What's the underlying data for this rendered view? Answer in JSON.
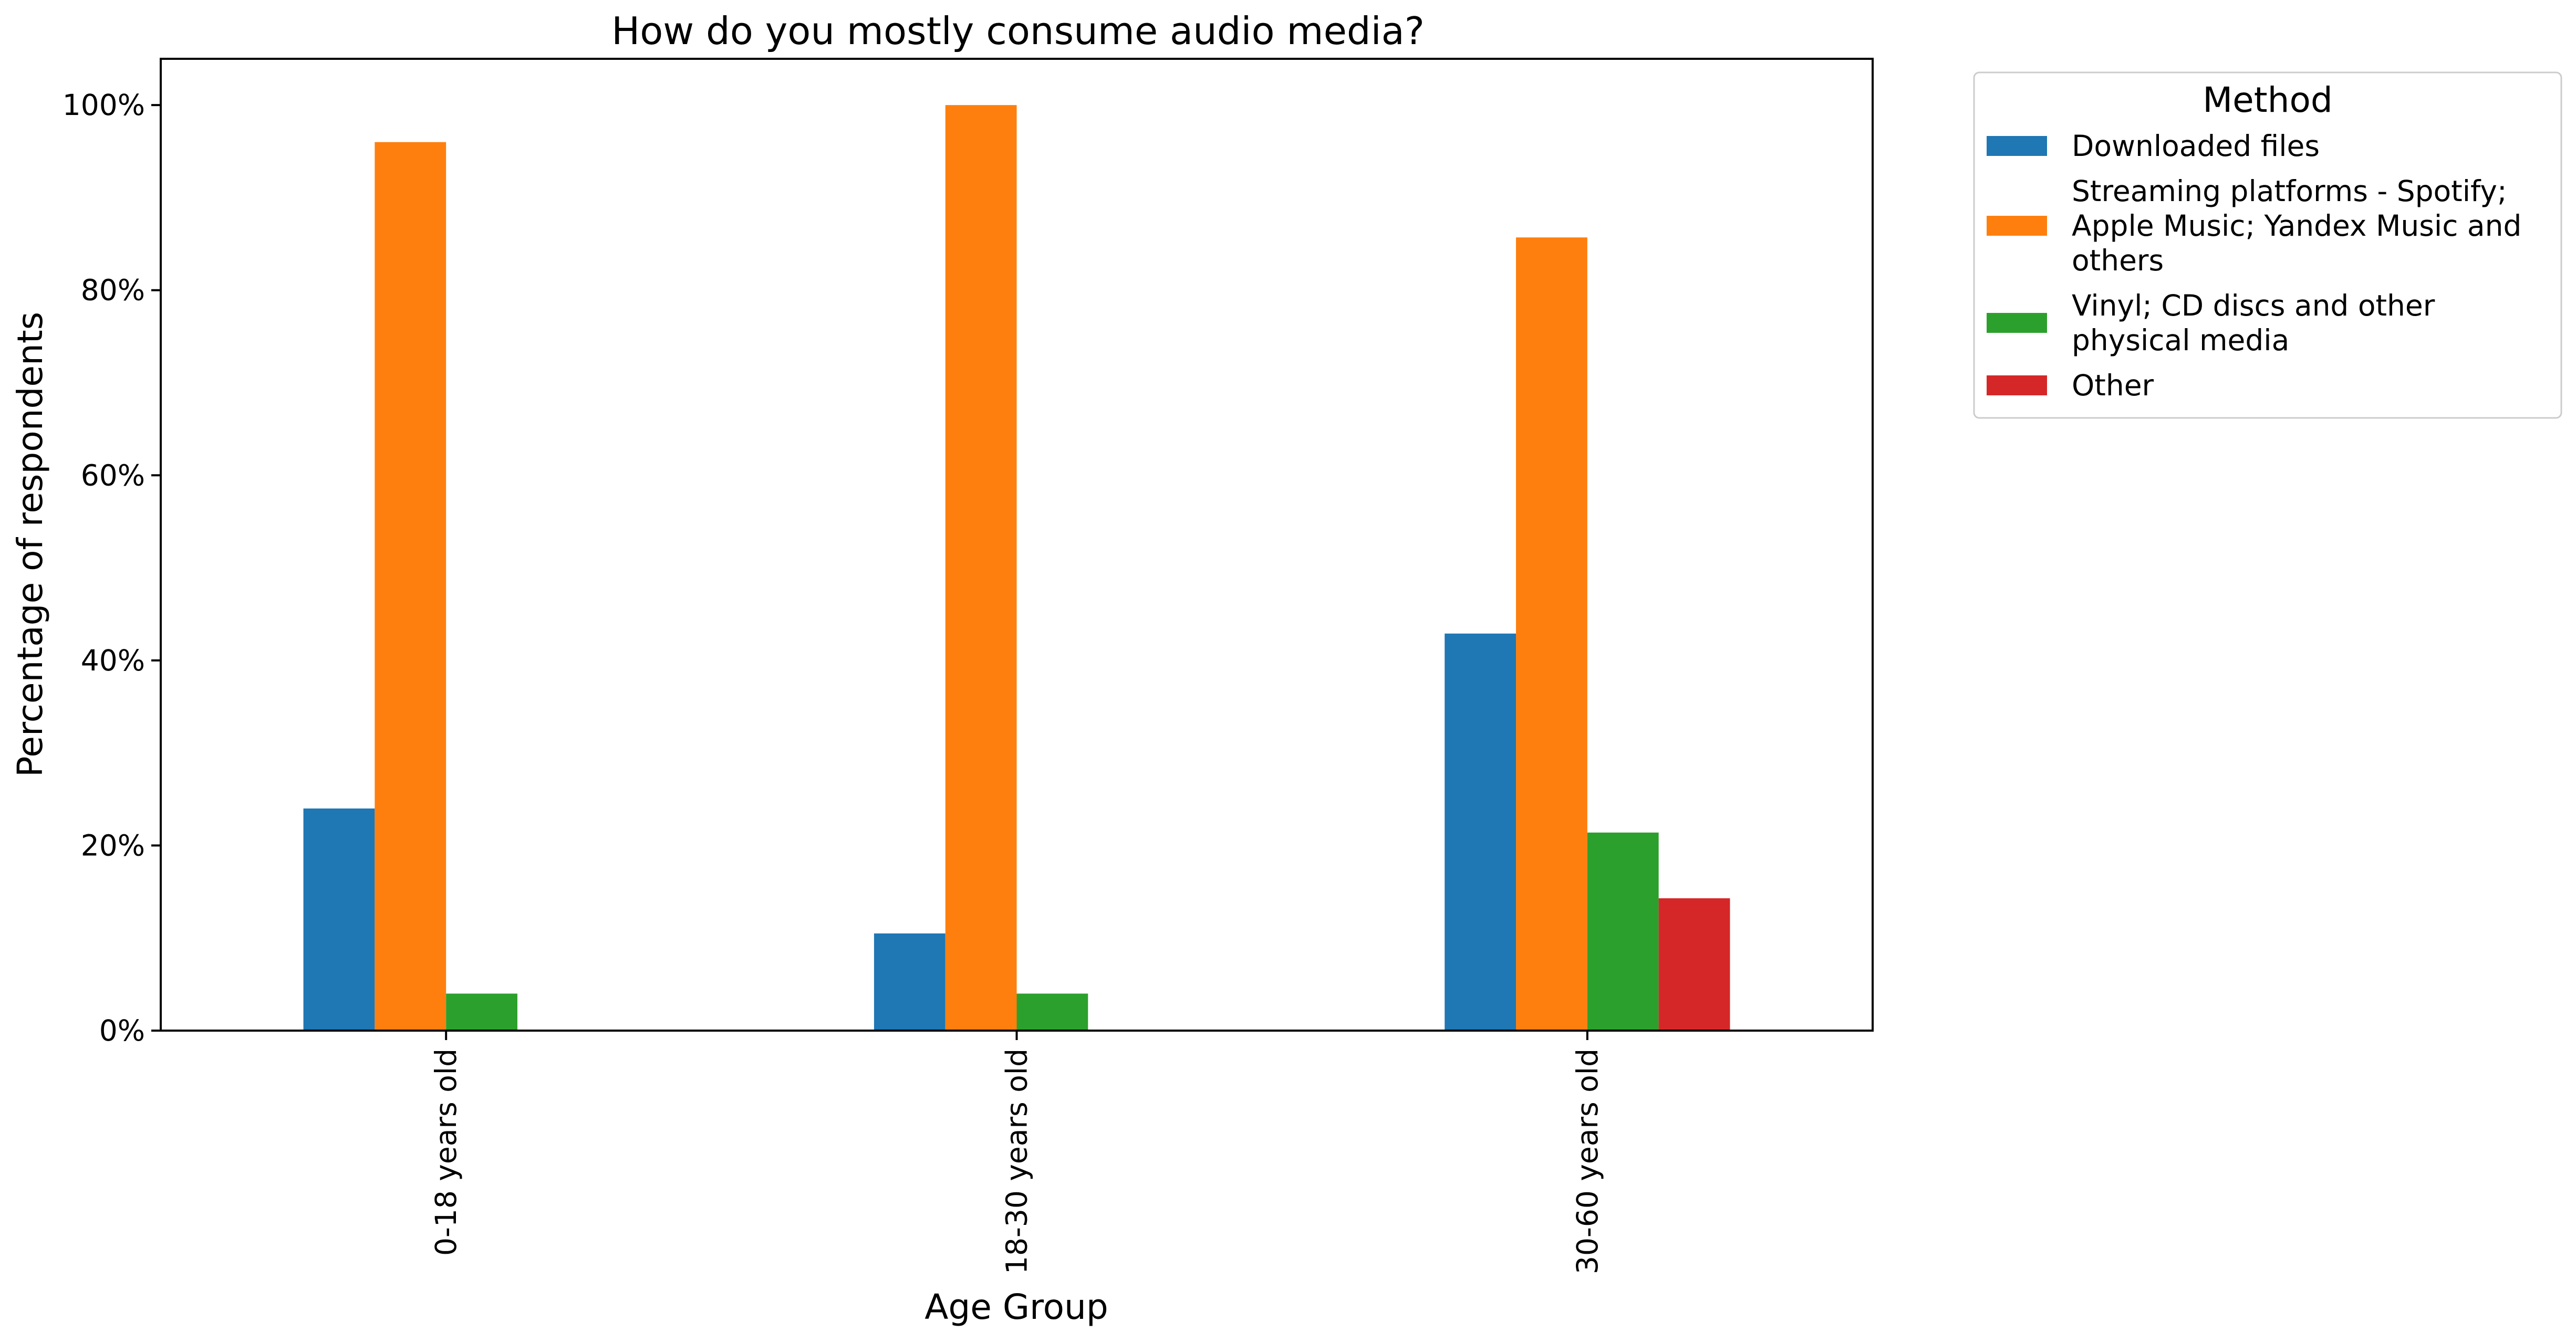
{
  "chart_data": {
    "type": "bar",
    "title": "How do you mostly consume audio media?",
    "xlabel": "Age Group",
    "ylabel": "Percentage of respondents",
    "categories": [
      "0-18 years old",
      "18-30 years old",
      "30-60 years old"
    ],
    "series": [
      {
        "name": "Downloaded files",
        "color": "#1f77b4",
        "values": [
          24,
          10.5,
          42.9
        ]
      },
      {
        "name": "Streaming platforms - Spotify; Apple Music; Yandex Music and others",
        "color": "#ff7f0e",
        "values": [
          96,
          100,
          85.7
        ]
      },
      {
        "name": "Vinyl; CD discs and other physical media",
        "color": "#2ca02c",
        "values": [
          4,
          4,
          21.4
        ]
      },
      {
        "name": "Other",
        "color": "#d62728",
        "values": [
          0,
          0,
          14.3
        ]
      }
    ],
    "ylim": [
      0,
      105
    ],
    "yticks": [
      "0%",
      "20%",
      "40%",
      "60%",
      "80%",
      "100%"
    ],
    "ytick_values": [
      0,
      20,
      40,
      60,
      80,
      100
    ],
    "legend": {
      "title": "Method",
      "placement": "outside-top-right",
      "labels": [
        [
          "Downloaded files"
        ],
        [
          "Streaming platforms - Spotify;",
          "Apple Music; Yandex Music and",
          "others"
        ],
        [
          "Vinyl; CD discs and other",
          "physical media"
        ],
        [
          "Other"
        ]
      ]
    },
    "grid": false
  }
}
